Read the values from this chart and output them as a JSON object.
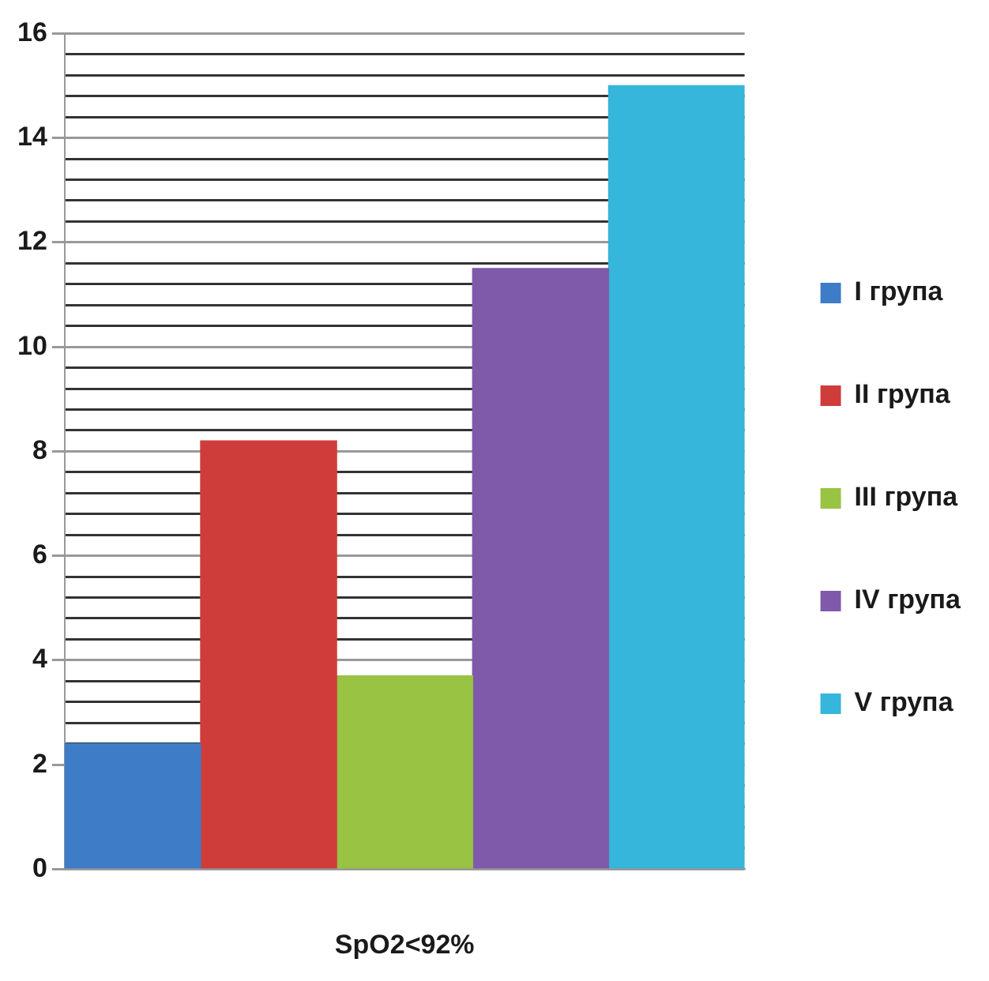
{
  "chart_data": {
    "type": "bar",
    "xlabel": "SpO2<92%",
    "categories": [
      null
    ],
    "series": [
      {
        "name": "I група",
        "color": "#3f7cc8",
        "values": [
          2.4
        ]
      },
      {
        "name": "II група",
        "color": "#cf3d3b",
        "values": [
          8.2
        ]
      },
      {
        "name": "III група",
        "color": "#98c343",
        "values": [
          3.7
        ]
      },
      {
        "name": "IV група",
        "color": "#7f5aab",
        "values": [
          11.5
        ]
      },
      {
        "name": "V група",
        "color": "#35b6da",
        "values": [
          15
        ]
      }
    ],
    "ylim": [
      0,
      16
    ],
    "yticks": [
      0,
      {
        "value": 0.4,
        "label": null
      },
      {
        "value": 0.8,
        "label": null
      },
      {
        "value": 1.2,
        "label": null
      },
      {
        "value": 1.6,
        "label": null
      },
      2,
      {
        "value": 2.4,
        "label": null
      },
      {
        "value": 2.8,
        "label": null
      },
      {
        "value": 3.2,
        "label": null
      },
      {
        "value": 3.6,
        "label": null
      },
      4,
      {
        "value": 4.4,
        "label": null
      },
      {
        "value": 4.8,
        "label": null
      },
      {
        "value": 5.2,
        "label": null
      },
      {
        "value": 5.6,
        "label": null
      },
      6,
      {
        "value": 6.4,
        "label": null
      },
      {
        "value": 6.8,
        "label": null
      },
      {
        "value": 7.2,
        "label": null
      },
      {
        "value": 7.6,
        "label": null
      },
      8,
      {
        "value": 8.4,
        "label": null
      },
      {
        "value": 8.8,
        "label": null
      },
      {
        "value": 9.2,
        "label": null
      },
      {
        "value": 9.6,
        "label": null
      },
      10,
      {
        "value": 10.4,
        "label": null
      },
      {
        "value": 10.8,
        "label": null
      },
      {
        "value": 11.2,
        "label": null
      },
      {
        "value": 11.6,
        "label": null
      },
      12,
      {
        "value": 12.4,
        "label": null
      },
      {
        "value": 12.8,
        "label": null
      },
      {
        "value": 13.2,
        "label": null
      },
      {
        "value": 13.6,
        "label": null
      },
      14,
      {
        "value": 14.4,
        "label": null
      },
      {
        "value": 14.8,
        "label": null
      },
      {
        "value": 15.2,
        "label": null
      },
      {
        "value": 15.6,
        "label": null
      },
      16
    ],
    "grid": "y",
    "legend": "right"
  }
}
